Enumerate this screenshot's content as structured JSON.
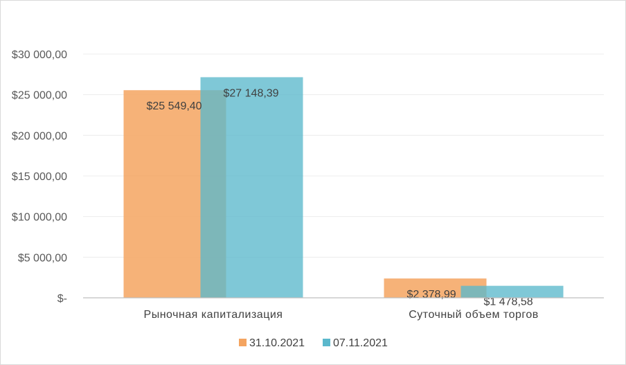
{
  "chart_data": {
    "type": "bar",
    "categories": [
      "Рыночная капитализация",
      "Суточный объем торгов"
    ],
    "series": [
      {
        "name": "31.10.2021",
        "color": "#F4A460",
        "values": [
          25549.4,
          2378.99
        ],
        "labels": [
          "$25 549,40",
          "$2 378,99"
        ]
      },
      {
        "name": "07.11.2021",
        "color": "#5BB8CC",
        "values": [
          27148.39,
          1478.58
        ],
        "labels": [
          "$27 148,39",
          "$1 478,58"
        ]
      }
    ],
    "yticks": [
      0,
      5000,
      10000,
      15000,
      20000,
      25000,
      30000
    ],
    "ytick_labels": [
      "$-",
      "$5 000,00",
      "$10 000,00",
      "$15 000,00",
      "$20 000,00",
      "$25 000,00",
      "$30 000,00"
    ],
    "ylim": [
      0,
      30000
    ],
    "grid": true,
    "legend_position": "bottom"
  }
}
